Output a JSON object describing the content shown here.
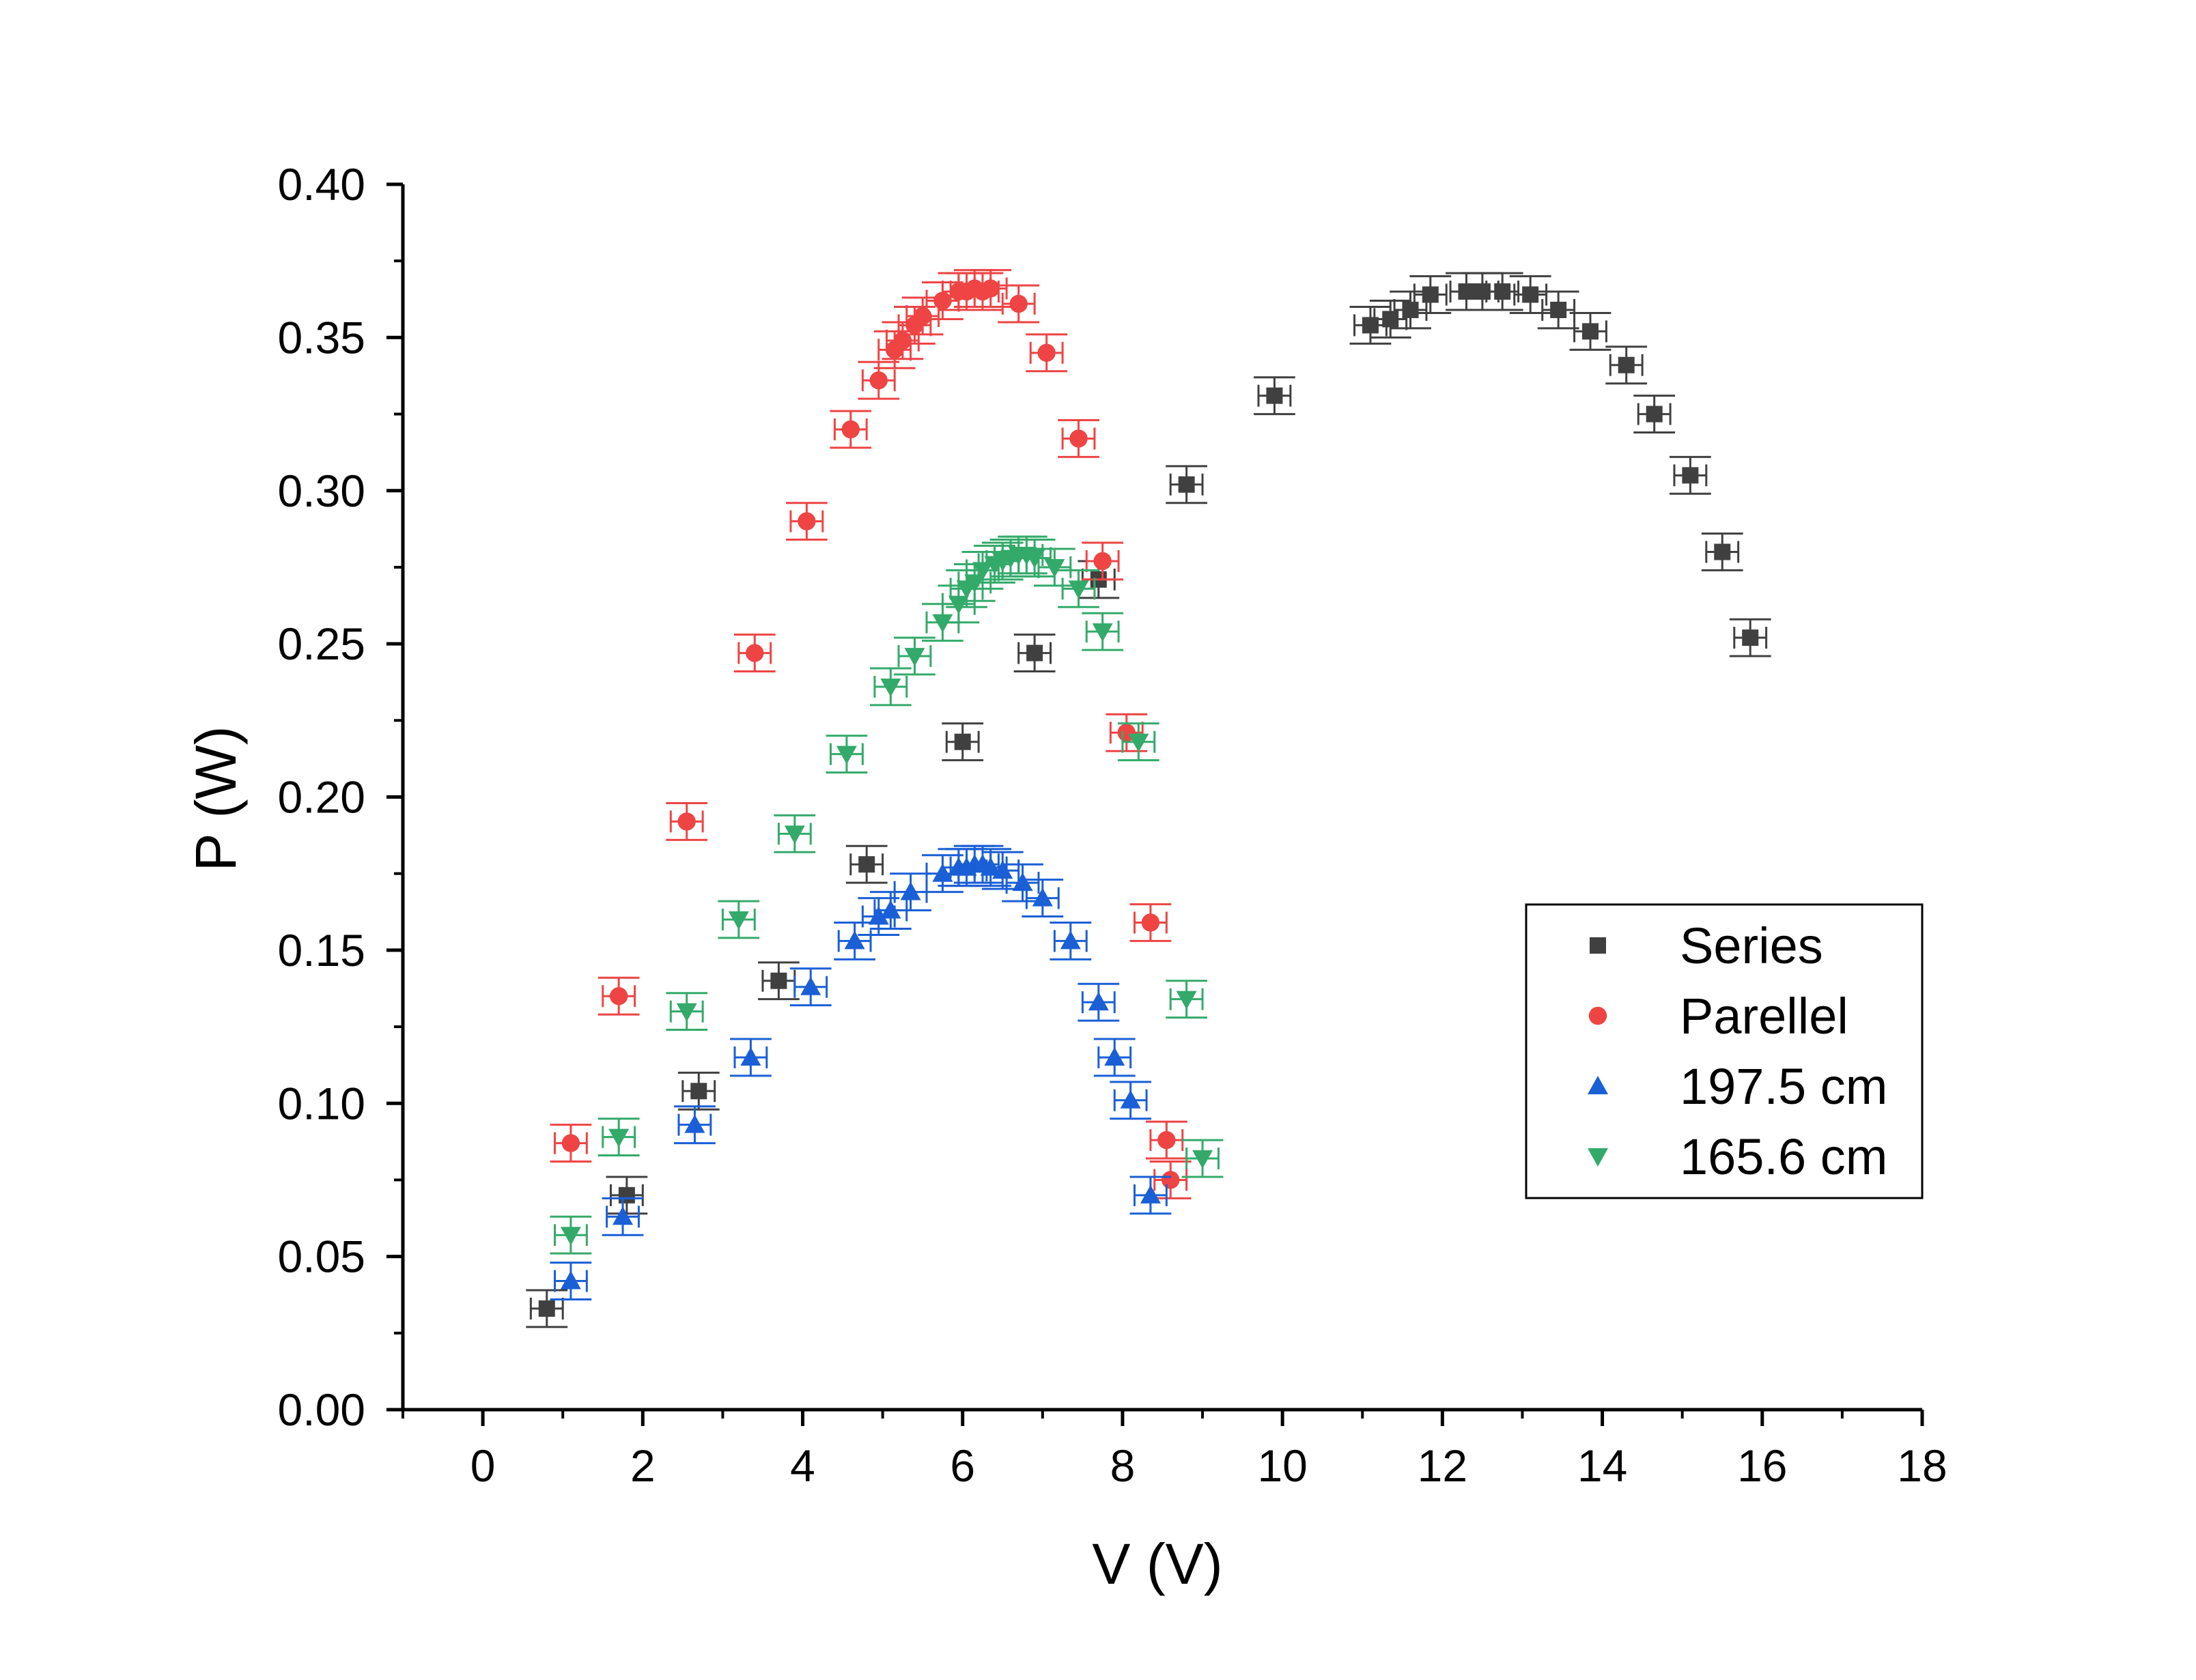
{
  "chart_data": {
    "type": "scatter",
    "title": "",
    "xlabel": "V (V)",
    "ylabel": "P (W)",
    "xlim": [
      -1,
      18
    ],
    "ylim": [
      0,
      0.4
    ],
    "xticks": [
      0,
      2,
      4,
      6,
      8,
      10,
      12,
      14,
      16,
      18
    ],
    "xtick_labels": [
      "0",
      "2",
      "4",
      "6",
      "8",
      "10",
      "12",
      "14",
      "16",
      "18"
    ],
    "yticks": [
      0,
      0.05,
      0.1,
      0.15,
      0.2,
      0.25,
      0.3,
      0.35,
      0.4
    ],
    "ytick_labels": [
      "0.00",
      "0.05",
      "0.10",
      "0.15",
      "0.20",
      "0.25",
      "0.30",
      "0.35",
      "0.40"
    ],
    "grid": false,
    "legend_position": "center-right",
    "error_bars": {
      "x": 0.2,
      "y": 0.006
    },
    "series": [
      {
        "name": "Series",
        "marker": "square",
        "color": "#404040",
        "x": [
          0.8,
          1.8,
          2.7,
          3.7,
          4.8,
          6.0,
          6.9,
          7.7,
          8.8,
          9.9,
          11.1,
          11.35,
          11.6,
          11.85,
          12.3,
          12.5,
          12.75,
          13.1,
          13.45,
          13.85,
          14.3,
          14.65,
          15.1,
          15.5,
          15.85
        ],
        "y": [
          0.033,
          0.07,
          0.104,
          0.14,
          0.178,
          0.218,
          0.247,
          0.271,
          0.302,
          0.331,
          0.354,
          0.356,
          0.359,
          0.364,
          0.365,
          0.365,
          0.365,
          0.364,
          0.359,
          0.352,
          0.341,
          0.325,
          0.305,
          0.28,
          0.252
        ]
      },
      {
        "name": "Parellel",
        "marker": "circle",
        "color": "#ee4444",
        "x": [
          1.1,
          1.7,
          2.55,
          3.4,
          4.05,
          4.6,
          4.95,
          5.15,
          5.25,
          5.4,
          5.5,
          5.75,
          5.95,
          6.05,
          6.15,
          6.25,
          6.35,
          6.7,
          7.05,
          7.45,
          7.75,
          8.05,
          8.35,
          8.55,
          8.6
        ],
        "y": [
          0.087,
          0.135,
          0.192,
          0.247,
          0.29,
          0.32,
          0.336,
          0.346,
          0.349,
          0.354,
          0.357,
          0.362,
          0.365,
          0.365,
          0.366,
          0.365,
          0.366,
          0.361,
          0.345,
          0.317,
          0.277,
          0.221,
          0.159,
          0.088,
          0.075
        ]
      },
      {
        "name": "197.5 cm",
        "marker": "triangle-up",
        "color": "#1a5fd6",
        "x": [
          1.1,
          1.75,
          2.65,
          3.35,
          4.1,
          4.65,
          4.95,
          5.1,
          5.35,
          5.75,
          5.95,
          6.05,
          6.15,
          6.25,
          6.35,
          6.5,
          6.75,
          7.0,
          7.35,
          7.7,
          7.9,
          8.1,
          8.35
        ],
        "y": [
          0.042,
          0.063,
          0.093,
          0.115,
          0.138,
          0.153,
          0.161,
          0.163,
          0.169,
          0.175,
          0.177,
          0.177,
          0.178,
          0.178,
          0.177,
          0.176,
          0.172,
          0.167,
          0.153,
          0.133,
          0.115,
          0.101,
          0.07
        ]
      },
      {
        "name": "165.6 cm",
        "marker": "triangle-down",
        "color": "#33aa6a",
        "x": [
          1.1,
          1.7,
          2.55,
          3.2,
          3.9,
          4.55,
          5.1,
          5.4,
          5.75,
          5.95,
          6.05,
          6.15,
          6.25,
          6.4,
          6.5,
          6.6,
          6.7,
          6.8,
          6.9,
          7.15,
          7.45,
          7.75,
          8.2,
          8.8,
          9.0
        ],
        "y": [
          0.057,
          0.089,
          0.13,
          0.16,
          0.188,
          0.214,
          0.236,
          0.246,
          0.257,
          0.263,
          0.268,
          0.27,
          0.274,
          0.276,
          0.277,
          0.278,
          0.279,
          0.279,
          0.278,
          0.275,
          0.268,
          0.254,
          0.218,
          0.134,
          0.082
        ]
      }
    ]
  }
}
